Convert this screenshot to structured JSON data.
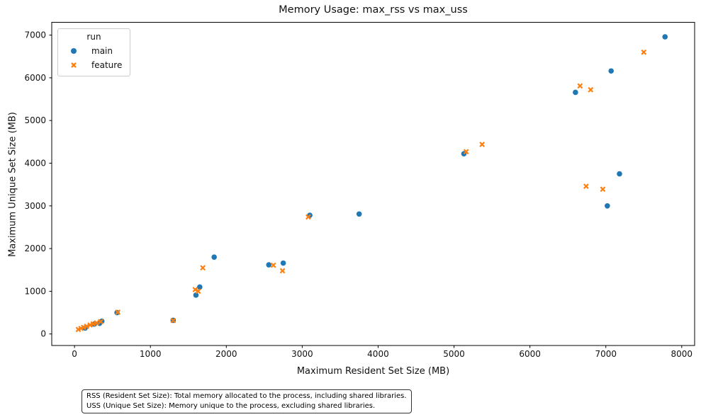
{
  "chart_data": {
    "type": "scatter",
    "title": "Memory Usage: max_rss vs max_uss",
    "xlabel": "Maximum Resident Set Size (MB)",
    "ylabel": "Maximum Unique Set Size (MB)",
    "legend_title": "run",
    "legend_position": "upper left",
    "grid": false,
    "xlim": [
      -300,
      8170
    ],
    "ylim": [
      -270,
      7300
    ],
    "xticks": [
      0,
      1000,
      2000,
      3000,
      4000,
      5000,
      6000,
      7000,
      8000
    ],
    "yticks": [
      0,
      1000,
      2000,
      3000,
      4000,
      5000,
      6000,
      7000
    ],
    "series": [
      {
        "name": "main",
        "marker": "circle",
        "color": "#1f77b4",
        "points": [
          [
            140,
            140
          ],
          [
            260,
            230
          ],
          [
            330,
            250
          ],
          [
            360,
            300
          ],
          [
            560,
            500
          ],
          [
            1300,
            320
          ],
          [
            1600,
            910
          ],
          [
            1650,
            1100
          ],
          [
            1840,
            1800
          ],
          [
            2560,
            1620
          ],
          [
            2750,
            1660
          ],
          [
            3100,
            2780
          ],
          [
            3750,
            2810
          ],
          [
            5130,
            4220
          ],
          [
            6600,
            5660
          ],
          [
            7020,
            3000
          ],
          [
            7070,
            6160
          ],
          [
            7180,
            3750
          ],
          [
            7780,
            6960
          ]
        ]
      },
      {
        "name": "feature",
        "marker": "x",
        "color": "#ff7f0e",
        "points": [
          [
            50,
            105
          ],
          [
            85,
            130
          ],
          [
            120,
            155
          ],
          [
            160,
            180
          ],
          [
            205,
            210
          ],
          [
            245,
            235
          ],
          [
            290,
            260
          ],
          [
            345,
            290
          ],
          [
            570,
            510
          ],
          [
            1300,
            315
          ],
          [
            1590,
            1040
          ],
          [
            1630,
            1000
          ],
          [
            1690,
            1550
          ],
          [
            2620,
            1610
          ],
          [
            2740,
            1480
          ],
          [
            3080,
            2740
          ],
          [
            5160,
            4270
          ],
          [
            5370,
            4440
          ],
          [
            6660,
            5810
          ],
          [
            6740,
            3460
          ],
          [
            6800,
            5720
          ],
          [
            6960,
            3390
          ],
          [
            7500,
            6600
          ]
        ]
      }
    ]
  },
  "footnote": {
    "lines": [
      "RSS (Resident Set Size): Total memory allocated to the process, including shared libraries.",
      "USS (Unique Set Size): Memory unique to the process, excluding shared libraries."
    ]
  }
}
